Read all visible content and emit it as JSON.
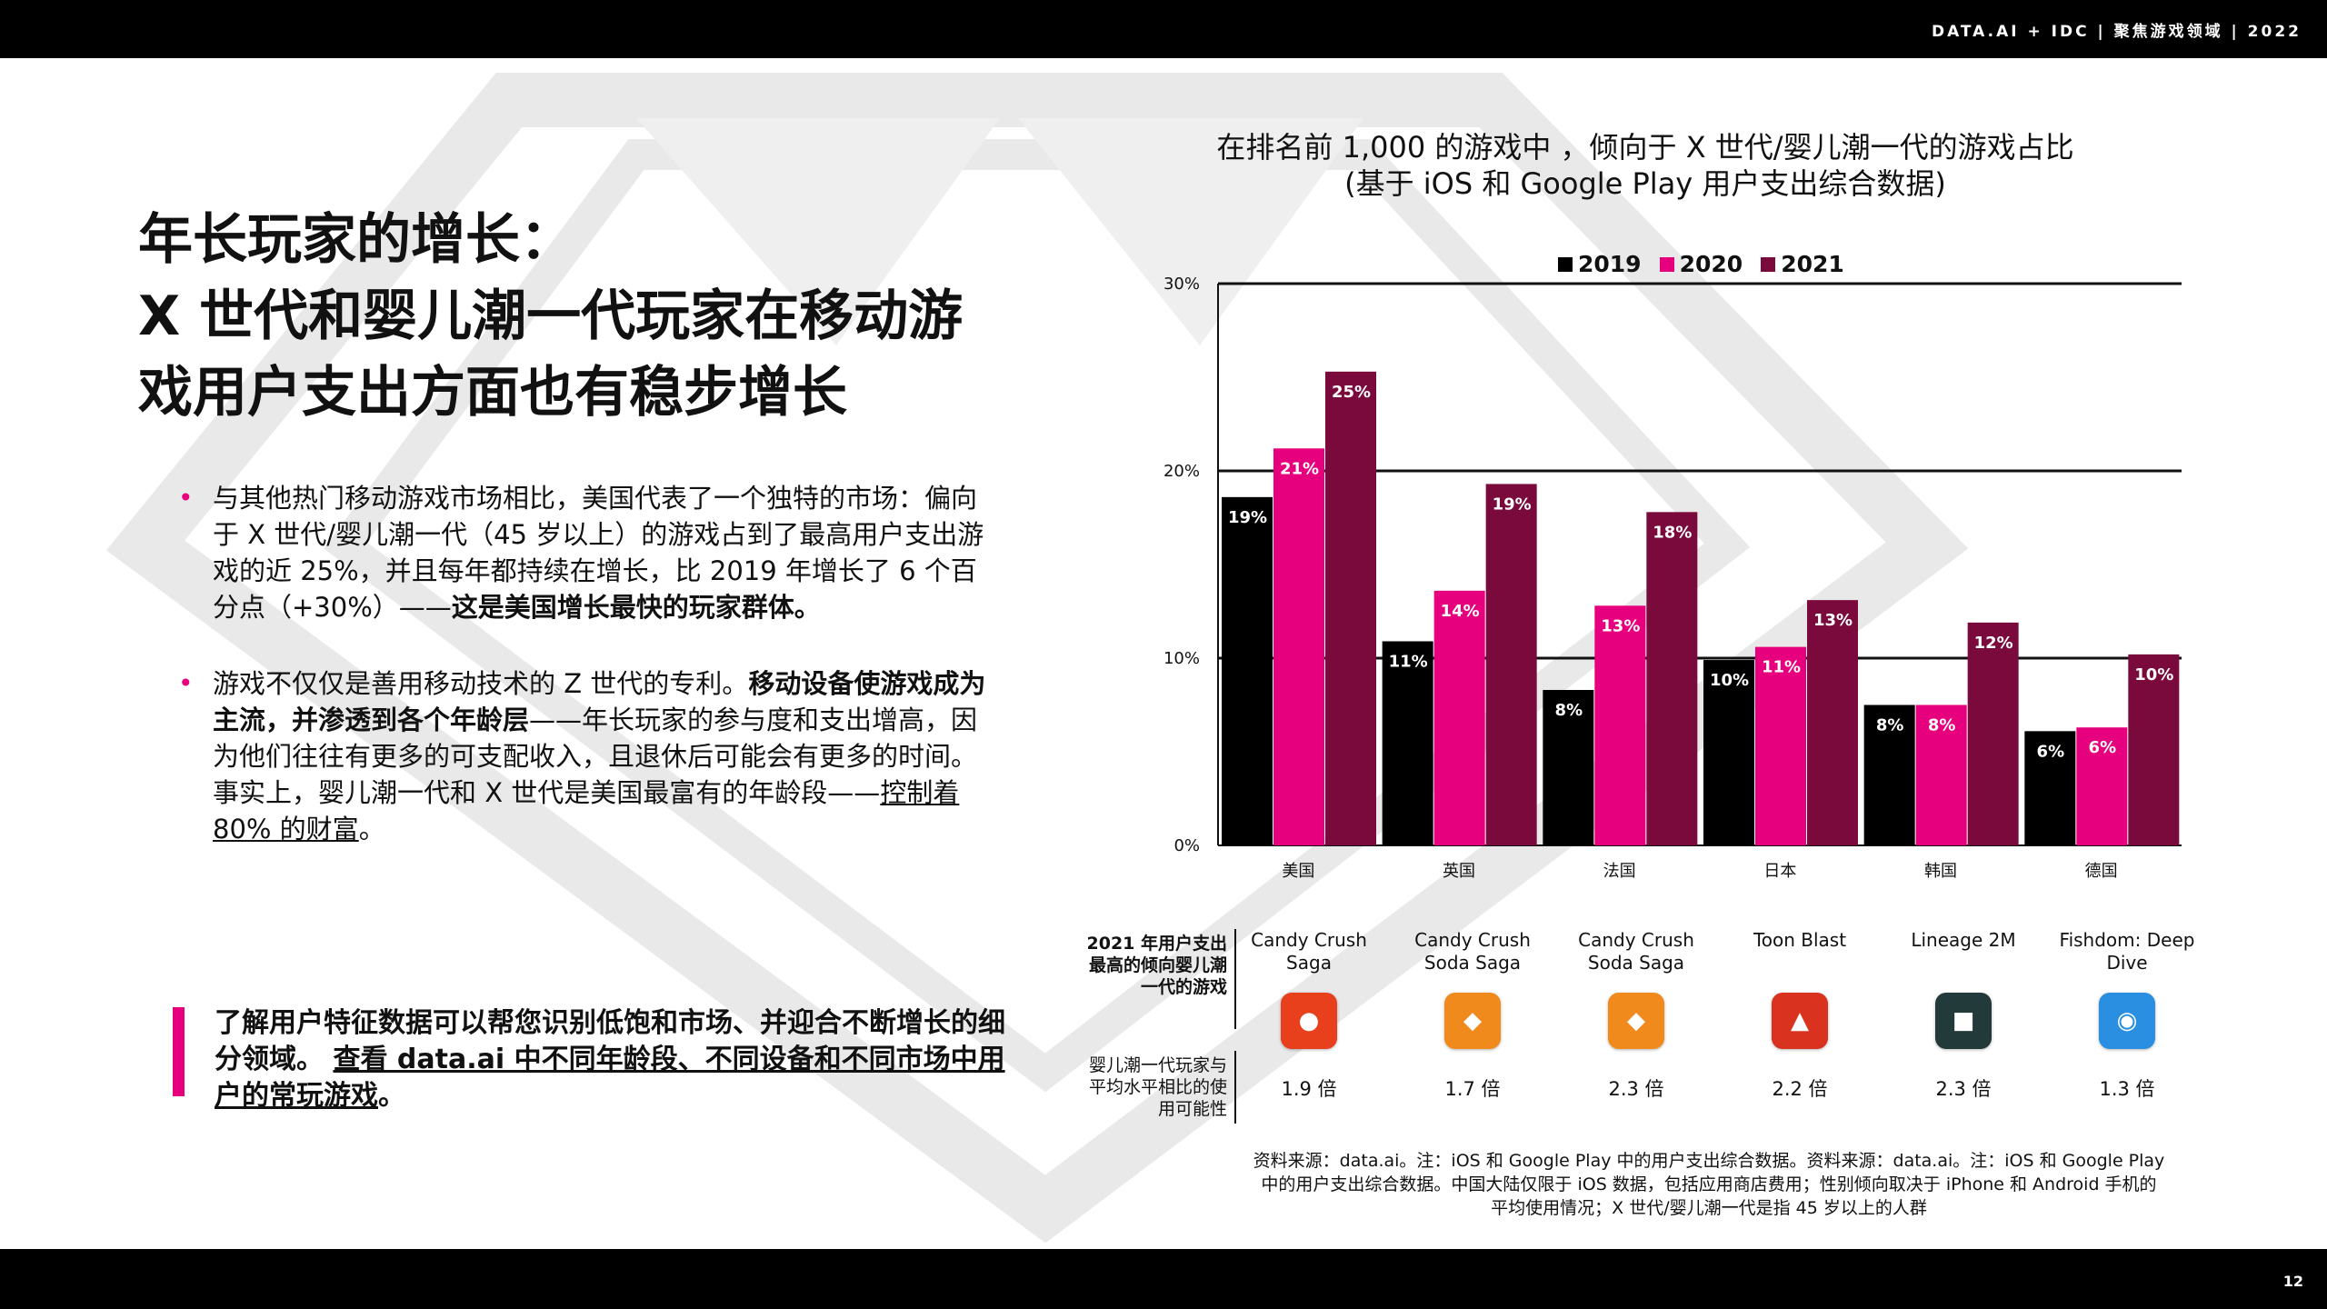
{
  "header": {
    "brand": "DATA.AI + IDC  |  聚焦游戏领域  | 2022"
  },
  "footer": {
    "page_number": "12"
  },
  "main": {
    "title_line1": "年长玩家的增长：",
    "title_line2": "X 世代和婴儿潮一代玩家在移动游",
    "title_line3": "戏用户支出方面也有稳步增长"
  },
  "bullets": {
    "b1_text": "与其他热门移动游戏市场相比，美国代表了一个独特的市场：偏向于 X 世代/婴儿潮一代（45 岁以上）的游戏占到了最高用户支出游戏的近 25%，并且每年都持续在增长，比 2019 年增长了 6 个百分点（+30%）——",
    "b1_bold": "这是美国增长最快的玩家群体。",
    "b2_text1": "游戏不仅仅是善用移动技术的 Z 世代的专利。",
    "b2_bold": "移动设备使游戏成为主流，并渗透到各个年龄层",
    "b2_text2": "——年长玩家的参与度和支出增高，因为他们往往有更多的可支配收入，且退休后可能会有更多的时间。事实上，婴儿潮一代和 X 世代是美国最富有的年龄段——",
    "b2_underline": "控制着 80% 的财富",
    "b2_end": "。"
  },
  "callout": {
    "text": "了解用户特征数据可以帮您识别低饱和市场、并迎合不断增长的细分领域。 ",
    "link": "查看 data.ai 中不同年龄段、不同设备和不同市场中用户的常玩游戏",
    "end": "。"
  },
  "chart_title_line1": "在排名前 1,000 的游戏中 ，倾向于 X 世代/婴儿潮一代的游戏占比",
  "chart_title_line2": "(基于 iOS 和 Google Play 用户支出综合数据)",
  "chart_data": {
    "type": "bar",
    "categories": [
      "美国",
      "英国",
      "法国",
      "日本",
      "韩国",
      "德国"
    ],
    "series": [
      {
        "name": "2019",
        "color": "#000000",
        "values": [
          19,
          11,
          8,
          10,
          8,
          6
        ]
      },
      {
        "name": "2020",
        "color": "#e6007e",
        "values": [
          21,
          14,
          13,
          11,
          8,
          6
        ]
      },
      {
        "name": "2021",
        "color": "#7a0a3c",
        "values": [
          25,
          19,
          18,
          13,
          12,
          10
        ]
      }
    ],
    "exact_values": [
      [
        18.6,
        10.9,
        8.3,
        9.9,
        7.5,
        6.1
      ],
      [
        21.2,
        13.6,
        12.8,
        10.6,
        7.5,
        6.3
      ],
      [
        25.3,
        19.3,
        17.8,
        13.1,
        11.9,
        10.2
      ]
    ],
    "ylim": [
      0,
      30
    ],
    "yticks": [
      "0%",
      "10%",
      "20%",
      "30%"
    ],
    "grid": true,
    "legend_position": "top"
  },
  "games": {
    "label": "2021 年用户支出最高的倾向婴儿潮一代的游戏",
    "usage_label": "婴儿潮一代玩家与平均水平相比的使用可能性",
    "items": [
      {
        "name": "Candy Crush Saga",
        "multiplier": "1.9 倍",
        "icon": "candy-crush-saga-icon",
        "color": "#e8401c"
      },
      {
        "name": "Candy Crush Soda Saga",
        "multiplier": "1.7 倍",
        "icon": "candy-crush-soda-saga-icon",
        "color": "#f08a1c"
      },
      {
        "name": "Candy Crush Soda Saga",
        "multiplier": "2.3 倍",
        "icon": "candy-crush-soda-saga-icon",
        "color": "#f08a1c"
      },
      {
        "name": "Toon Blast",
        "multiplier": "2.2 倍",
        "icon": "toon-blast-icon",
        "color": "#d9321e"
      },
      {
        "name": "Lineage 2M",
        "multiplier": "2.3 倍",
        "icon": "lineage-2m-icon",
        "color": "#233a3a"
      },
      {
        "name": "Fishdom: Deep Dive",
        "multiplier": "1.3 倍",
        "icon": "fishdom-icon",
        "color": "#2a8fe0"
      }
    ]
  },
  "source": {
    "line1": "资料来源：data.ai。注：iOS 和 Google Play 中的用户支出综合数据。资料来源：data.ai。注：iOS 和 Google Play",
    "line2": "中的用户支出综合数据。中国大陆仅限于 iOS 数据，包括应用商店费用；性别倾向取决于 iPhone 和 Android 手机的",
    "line3": "平均使用情况；X 世代/婴儿潮一代是指 45 岁以上的人群"
  }
}
